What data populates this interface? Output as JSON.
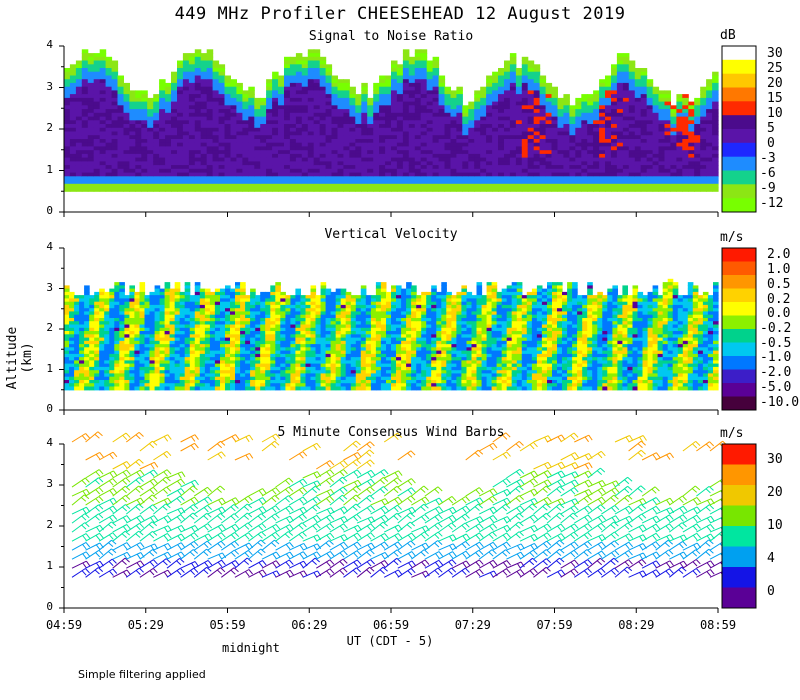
{
  "title": "449 MHz Profiler CHEESEHEAD 12 August 2019",
  "y_axis_label": "Altitude (km)",
  "x_axis_label": "UT  (CDT - 5)",
  "midnight_label": "midnight",
  "footnote": "Simple filtering applied",
  "x_tick_labels": [
    "04:59",
    "05:29",
    "05:59",
    "06:29",
    "06:59",
    "07:29",
    "07:59",
    "08:29",
    "08:59"
  ],
  "chart_data": [
    {
      "type": "heatmap",
      "title": "Signal to Noise Ratio",
      "unit": "dB",
      "xlabel": "UT  (CDT - 5)",
      "ylabel": "Altitude (km)",
      "ylim": [
        0,
        4
      ],
      "y_ticks": [
        "0",
        "1",
        "2",
        "3",
        "4"
      ],
      "colorbar": {
        "levels": [
          "30",
          "25",
          "20",
          "15",
          "10",
          "5",
          "0",
          "-3",
          "-6",
          "-9",
          "-12"
        ],
        "colors": [
          "#ffffff",
          "#ffff00",
          "#ffc800",
          "#ff7800",
          "#ff2a00",
          "#4b0b8c",
          "#5a14a8",
          "#1e28ff",
          "#1e8cff",
          "#14d28c",
          "#8ce614",
          "#78ff00"
        ]
      }
    },
    {
      "type": "heatmap",
      "title": "Vertical Velocity",
      "unit": "m/s",
      "xlabel": "UT  (CDT - 5)",
      "ylabel": "Altitude (km)",
      "ylim": [
        0,
        4
      ],
      "y_ticks": [
        "0",
        "1",
        "2",
        "3",
        "4"
      ],
      "colorbar": {
        "levels": [
          "2.0",
          "1.0",
          "0.5",
          "0.2",
          "0.0",
          "-0.2",
          "-0.5",
          "-1.0",
          "-2.0",
          "-5.0",
          "-10.0"
        ],
        "colors": [
          "#ff1a00",
          "#ff5a00",
          "#ff9600",
          "#ffd200",
          "#ffff00",
          "#8cf000",
          "#00d28c",
          "#00c8f0",
          "#0078ff",
          "#3c1ec8",
          "#5a0096",
          "#46003c"
        ]
      }
    },
    {
      "type": "scatter",
      "title": "5 Minute Consensus Wind Barbs",
      "unit": "m/s",
      "xlabel": "UT  (CDT - 5)",
      "ylabel": "Altitude (km)",
      "ylim": [
        0,
        4
      ],
      "y_ticks": [
        "0",
        "1",
        "2",
        "3",
        "4"
      ],
      "colorbar": {
        "levels": [
          "30",
          "20",
          "10",
          "4",
          "0"
        ],
        "colors": [
          "#ff1a00",
          "#ff9600",
          "#f0c800",
          "#78e600",
          "#00e6a0",
          "#00a0f0",
          "#1414e6",
          "#5a0096"
        ]
      }
    }
  ]
}
